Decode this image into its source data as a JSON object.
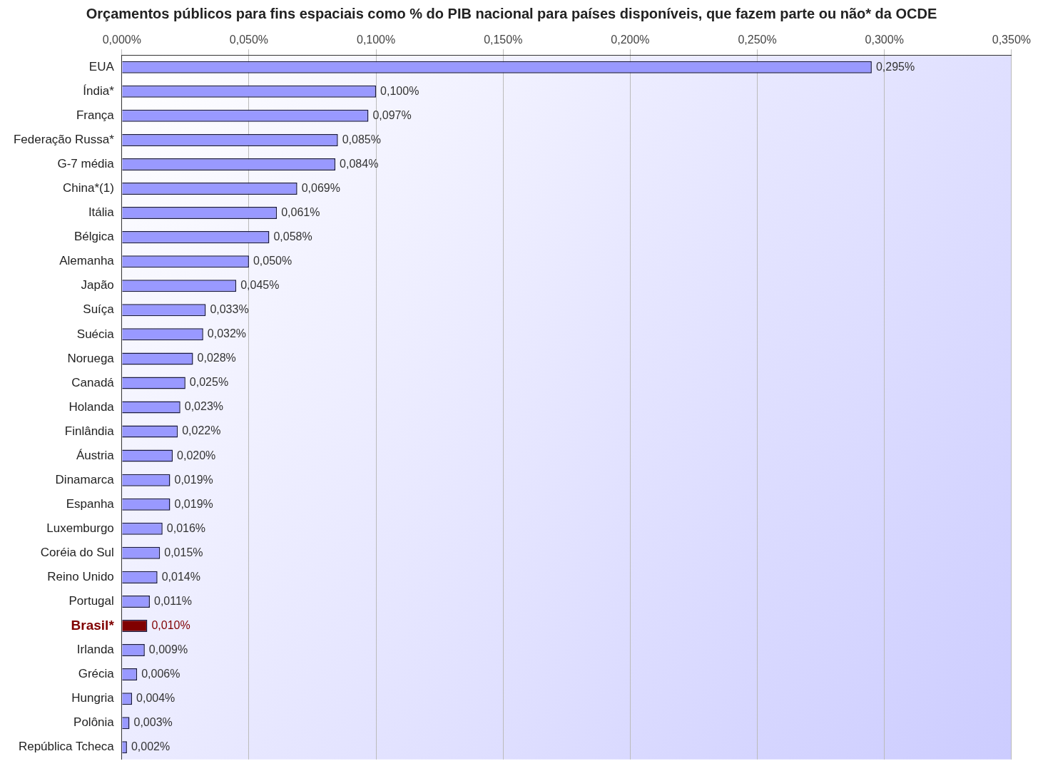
{
  "chart_data": {
    "type": "bar",
    "orientation": "horizontal",
    "title": "Orçamentos públicos para fins espaciais como % do PIB nacional para países disponíveis, que fazem parte ou não* da OCDE",
    "categories": [
      "EUA",
      "Índia*",
      "França",
      "Federação Russa*",
      "G-7 média",
      "China*(1)",
      "Itália",
      "Bélgica",
      "Alemanha",
      "Japão",
      "Suíça",
      "Suécia",
      "Noruega",
      "Canadá",
      "Holanda",
      "Finlândia",
      "Áustria",
      "Dinamarca",
      "Espanha",
      "Luxemburgo",
      "Coréia do Sul",
      "Reino Unido",
      "Portugal",
      "Brasil*",
      "Irlanda",
      "Grécia",
      "Hungria",
      "Polônia",
      "República Tcheca"
    ],
    "values": [
      0.295,
      0.1,
      0.097,
      0.085,
      0.084,
      0.069,
      0.061,
      0.058,
      0.05,
      0.045,
      0.033,
      0.032,
      0.028,
      0.025,
      0.023,
      0.022,
      0.02,
      0.019,
      0.019,
      0.016,
      0.015,
      0.014,
      0.011,
      0.01,
      0.009,
      0.006,
      0.004,
      0.003,
      0.002
    ],
    "value_labels": [
      "0,295%",
      "0,100%",
      "0,097%",
      "0,085%",
      "0,084%",
      "0,069%",
      "0,061%",
      "0,058%",
      "0,050%",
      "0,045%",
      "0,033%",
      "0,032%",
      "0,028%",
      "0,025%",
      "0,023%",
      "0,022%",
      "0,020%",
      "0,019%",
      "0,019%",
      "0,016%",
      "0,015%",
      "0,014%",
      "0,011%",
      "0,010%",
      "0,009%",
      "0,006%",
      "0,004%",
      "0,003%",
      "0,002%"
    ],
    "colors": [
      "#9999ff",
      "#9999ff",
      "#9999ff",
      "#9999ff",
      "#9999ff",
      "#9999ff",
      "#9999ff",
      "#9999ff",
      "#9999ff",
      "#9999ff",
      "#9999ff",
      "#9999ff",
      "#9999ff",
      "#9999ff",
      "#9999ff",
      "#9999ff",
      "#9999ff",
      "#9999ff",
      "#9999ff",
      "#9999ff",
      "#9999ff",
      "#9999ff",
      "#9999ff",
      "#800000",
      "#9999ff",
      "#9999ff",
      "#9999ff",
      "#9999ff",
      "#9999ff"
    ],
    "xlim": [
      0,
      0.35
    ],
    "xticks": [
      {
        "value": 0,
        "label": "0,000%"
      },
      {
        "value": 0.05,
        "label": "0,050%"
      },
      {
        "value": 0.1,
        "label": "0,100%"
      },
      {
        "value": 0.15,
        "label": "0,150%"
      },
      {
        "value": 0.2,
        "label": "0,200%"
      },
      {
        "value": 0.25,
        "label": "0,250%"
      },
      {
        "value": 0.3,
        "label": "0,300%"
      },
      {
        "value": 0.35,
        "label": "0,350%"
      }
    ],
    "grid": "x",
    "legend": false
  }
}
